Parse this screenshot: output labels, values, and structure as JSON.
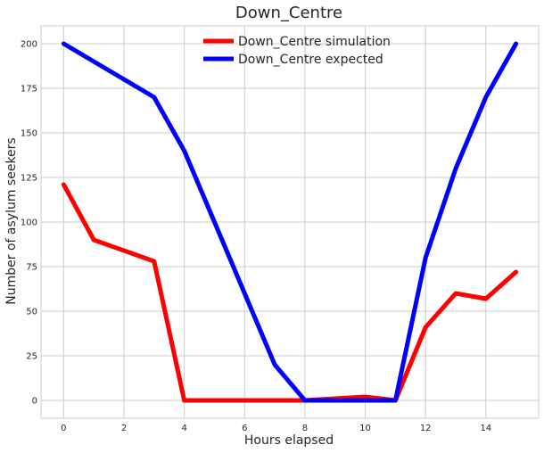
{
  "chart_data": {
    "type": "line",
    "title": "Down_Centre",
    "xlabel": "Hours elapsed",
    "ylabel": "Number of asylum seekers",
    "xlim": [
      -0.75,
      15.75
    ],
    "ylim": [
      -10,
      210
    ],
    "xticks": [
      0,
      2,
      4,
      6,
      8,
      10,
      12,
      14
    ],
    "yticks": [
      0,
      25,
      50,
      75,
      100,
      125,
      150,
      175,
      200
    ],
    "grid": true,
    "legend_position": "top-center",
    "series": [
      {
        "name": "Down_Centre simulation",
        "color": "#ff0000",
        "x": [
          0,
          1,
          2,
          3,
          4,
          5,
          6,
          7,
          8,
          9,
          10,
          11,
          12,
          13,
          14,
          15
        ],
        "y": [
          121,
          90,
          84,
          78,
          0,
          0,
          0,
          0,
          0,
          1,
          2,
          0,
          41,
          60,
          57,
          72
        ]
      },
      {
        "name": "Down_Centre expected",
        "color": "#0000ff",
        "x": [
          0,
          1,
          2,
          3,
          4,
          5,
          6,
          7,
          8,
          9,
          10,
          11,
          12,
          13,
          14,
          15
        ],
        "y": [
          200,
          190,
          180,
          170,
          140,
          100,
          60,
          20,
          0,
          0,
          0,
          0,
          80,
          130,
          170,
          200
        ]
      }
    ]
  }
}
